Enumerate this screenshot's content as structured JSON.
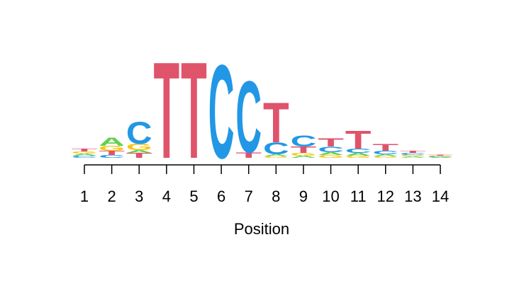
{
  "chart_data": {
    "type": "sequence_logo",
    "title": "",
    "xlabel": "Position",
    "ylabel": "",
    "x_ticks": [
      "1",
      "2",
      "3",
      "4",
      "5",
      "6",
      "7",
      "8",
      "9",
      "10",
      "11",
      "12",
      "13",
      "14"
    ],
    "colors": {
      "A": "#61d04f",
      "C": "#2297e6",
      "G": "#f5c710",
      "T": "#df536b"
    },
    "positions": [
      {
        "position": 1,
        "letters": [
          {
            "base": "C",
            "height": 0.03
          },
          {
            "base": "A",
            "height": 0.03
          },
          {
            "base": "G",
            "height": 0.03
          },
          {
            "base": "T",
            "height": 0.04
          }
        ]
      },
      {
        "position": 2,
        "letters": [
          {
            "base": "C",
            "height": 0.04
          },
          {
            "base": "T",
            "height": 0.06
          },
          {
            "base": "G",
            "height": 0.07
          },
          {
            "base": "A",
            "height": 0.12
          }
        ]
      },
      {
        "position": 3,
        "letters": [
          {
            "base": "T",
            "height": 0.07
          },
          {
            "base": "A",
            "height": 0.04
          },
          {
            "base": "G",
            "height": 0.09
          },
          {
            "base": "C",
            "height": 0.32
          }
        ]
      },
      {
        "position": 4,
        "letters": [
          {
            "base": "T",
            "height": 1.4
          }
        ]
      },
      {
        "position": 5,
        "letters": [
          {
            "base": "T",
            "height": 1.4
          }
        ]
      },
      {
        "position": 6,
        "letters": [
          {
            "base": "C",
            "height": 1.36
          }
        ]
      },
      {
        "position": 7,
        "letters": [
          {
            "base": "T",
            "height": 0.08
          },
          {
            "base": "C",
            "height": 1.04
          }
        ]
      },
      {
        "position": 8,
        "letters": [
          {
            "base": "G",
            "height": 0.02
          },
          {
            "base": "A",
            "height": 0.03
          },
          {
            "base": "C",
            "height": 0.17
          },
          {
            "base": "T",
            "height": 0.58
          }
        ]
      },
      {
        "position": 9,
        "letters": [
          {
            "base": "A",
            "height": 0.03
          },
          {
            "base": "G",
            "height": 0.04
          },
          {
            "base": "T",
            "height": 0.09
          },
          {
            "base": "C",
            "height": 0.16
          }
        ]
      },
      {
        "position": 10,
        "letters": [
          {
            "base": "G",
            "height": 0.04
          },
          {
            "base": "A",
            "height": 0.04
          },
          {
            "base": "C",
            "height": 0.08
          },
          {
            "base": "T",
            "height": 0.12
          }
        ]
      },
      {
        "position": 11,
        "letters": [
          {
            "base": "G",
            "height": 0.03
          },
          {
            "base": "A",
            "height": 0.04
          },
          {
            "base": "C",
            "height": 0.06
          },
          {
            "base": "T",
            "height": 0.26
          }
        ]
      },
      {
        "position": 12,
        "letters": [
          {
            "base": "G",
            "height": 0.02
          },
          {
            "base": "A",
            "height": 0.03
          },
          {
            "base": "C",
            "height": 0.05
          },
          {
            "base": "T",
            "height": 0.1
          }
        ]
      },
      {
        "position": 13,
        "letters": [
          {
            "base": "A",
            "height": 0.02
          },
          {
            "base": "G",
            "height": 0.02
          },
          {
            "base": "C",
            "height": 0.03
          },
          {
            "base": "T",
            "height": 0.03
          }
        ]
      },
      {
        "position": 14,
        "letters": [
          {
            "base": "A",
            "height": 0.01
          },
          {
            "base": "C",
            "height": 0.01
          },
          {
            "base": "G",
            "height": 0.01
          },
          {
            "base": "T",
            "height": 0.015
          }
        ]
      }
    ]
  }
}
